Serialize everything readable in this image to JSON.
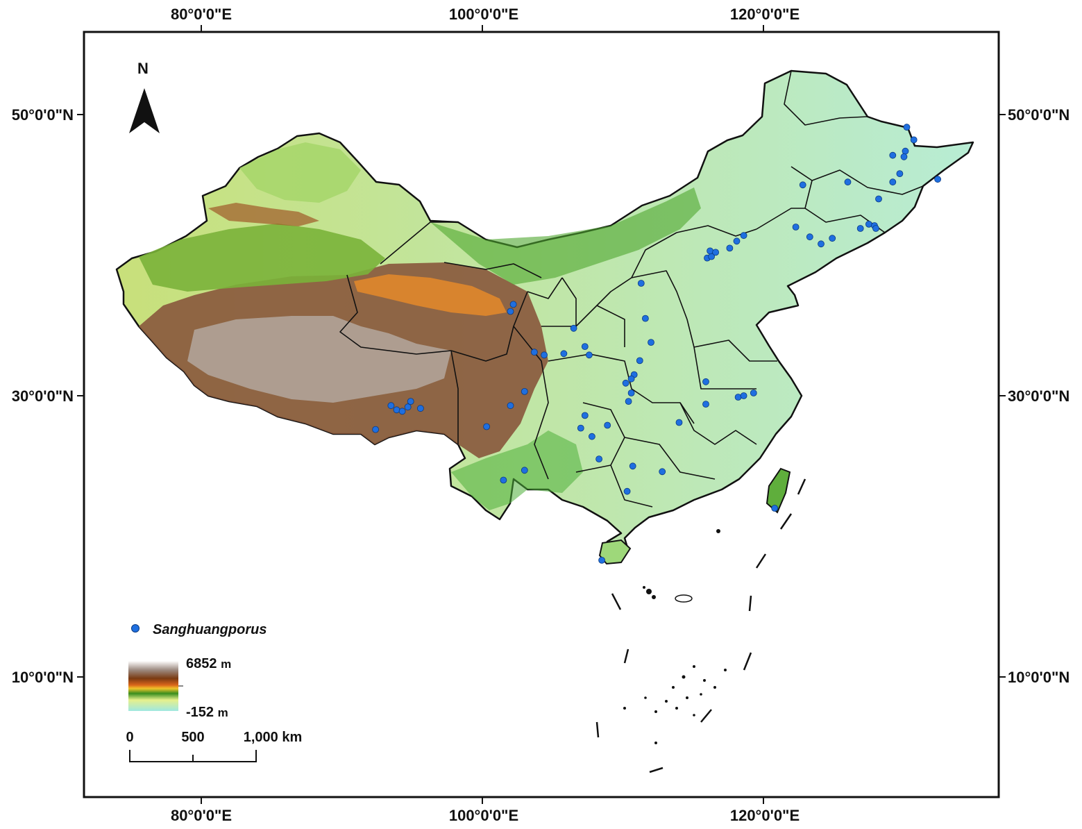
{
  "map": {
    "north_label": "N",
    "top_ticks": [
      "80°0'0\"E",
      "100°0'0\"E",
      "120°0'0\"E"
    ],
    "bottom_ticks": [
      "80°0'0\"E",
      "100°0'0\"E",
      "120°0'0\"E"
    ],
    "left_ticks": [
      "50°0'0\"N",
      "30°0'0\"N",
      "10°0'0\"N"
    ],
    "right_ticks": [
      "50°0'0\"N",
      "30°0'0\"N",
      "10°0'0\"N"
    ],
    "legend": {
      "point_label": "Sanghuangporus",
      "point_color": "#1f6fe0",
      "elevation_max": "6852",
      "elevation_min": "-152",
      "elevation_unit": "m",
      "scale_labels": [
        "0",
        "500",
        "1,000 km"
      ]
    },
    "records": [
      [
        102.2,
        36.5
      ],
      [
        102.0,
        36.0
      ],
      [
        103.7,
        33.1
      ],
      [
        104.4,
        32.9
      ],
      [
        105.8,
        33.0
      ],
      [
        107.3,
        33.5
      ],
      [
        107.6,
        32.9
      ],
      [
        106.5,
        34.8
      ],
      [
        111.3,
        38.0
      ],
      [
        111.6,
        35.5
      ],
      [
        112.0,
        33.8
      ],
      [
        111.2,
        32.5
      ],
      [
        110.8,
        31.5
      ],
      [
        110.6,
        31.2
      ],
      [
        110.2,
        30.9
      ],
      [
        110.6,
        30.2
      ],
      [
        110.4,
        29.6
      ],
      [
        108.9,
        27.9
      ],
      [
        107.8,
        27.1
      ],
      [
        107.0,
        27.7
      ],
      [
        107.3,
        28.6
      ],
      [
        108.3,
        25.5
      ],
      [
        110.7,
        25.0
      ],
      [
        112.8,
        24.6
      ],
      [
        110.3,
        23.2
      ],
      [
        108.5,
        18.3
      ],
      [
        102.0,
        29.3
      ],
      [
        103.0,
        30.3
      ],
      [
        100.3,
        27.8
      ],
      [
        101.5,
        24.0
      ],
      [
        103.0,
        24.7
      ],
      [
        93.5,
        29.3
      ],
      [
        93.9,
        29.0
      ],
      [
        94.3,
        28.9
      ],
      [
        94.7,
        29.2
      ],
      [
        94.9,
        29.6
      ],
      [
        95.6,
        29.1
      ],
      [
        92.4,
        27.6
      ],
      [
        116.0,
        39.8
      ],
      [
        116.3,
        39.9
      ],
      [
        116.2,
        40.3
      ],
      [
        116.6,
        40.2
      ],
      [
        117.6,
        40.5
      ],
      [
        118.1,
        41.0
      ],
      [
        118.6,
        41.4
      ],
      [
        122.3,
        42.0
      ],
      [
        123.3,
        41.3
      ],
      [
        124.1,
        40.8
      ],
      [
        124.9,
        41.2
      ],
      [
        126.9,
        41.9
      ],
      [
        127.5,
        42.2
      ],
      [
        127.9,
        42.1
      ],
      [
        128.0,
        41.9
      ],
      [
        128.2,
        44.0
      ],
      [
        129.2,
        45.2
      ],
      [
        129.7,
        45.8
      ],
      [
        130.1,
        47.4
      ],
      [
        129.2,
        47.1
      ],
      [
        130.0,
        47.0
      ],
      [
        130.7,
        48.2
      ],
      [
        130.2,
        49.1
      ],
      [
        132.4,
        45.4
      ],
      [
        126.0,
        45.2
      ],
      [
        122.8,
        45.0
      ],
      [
        120.8,
        22.0
      ],
      [
        114.0,
        28.1
      ],
      [
        115.9,
        31.0
      ],
      [
        115.9,
        29.4
      ],
      [
        118.2,
        29.9
      ],
      [
        118.6,
        30.0
      ],
      [
        119.3,
        30.2
      ]
    ]
  }
}
